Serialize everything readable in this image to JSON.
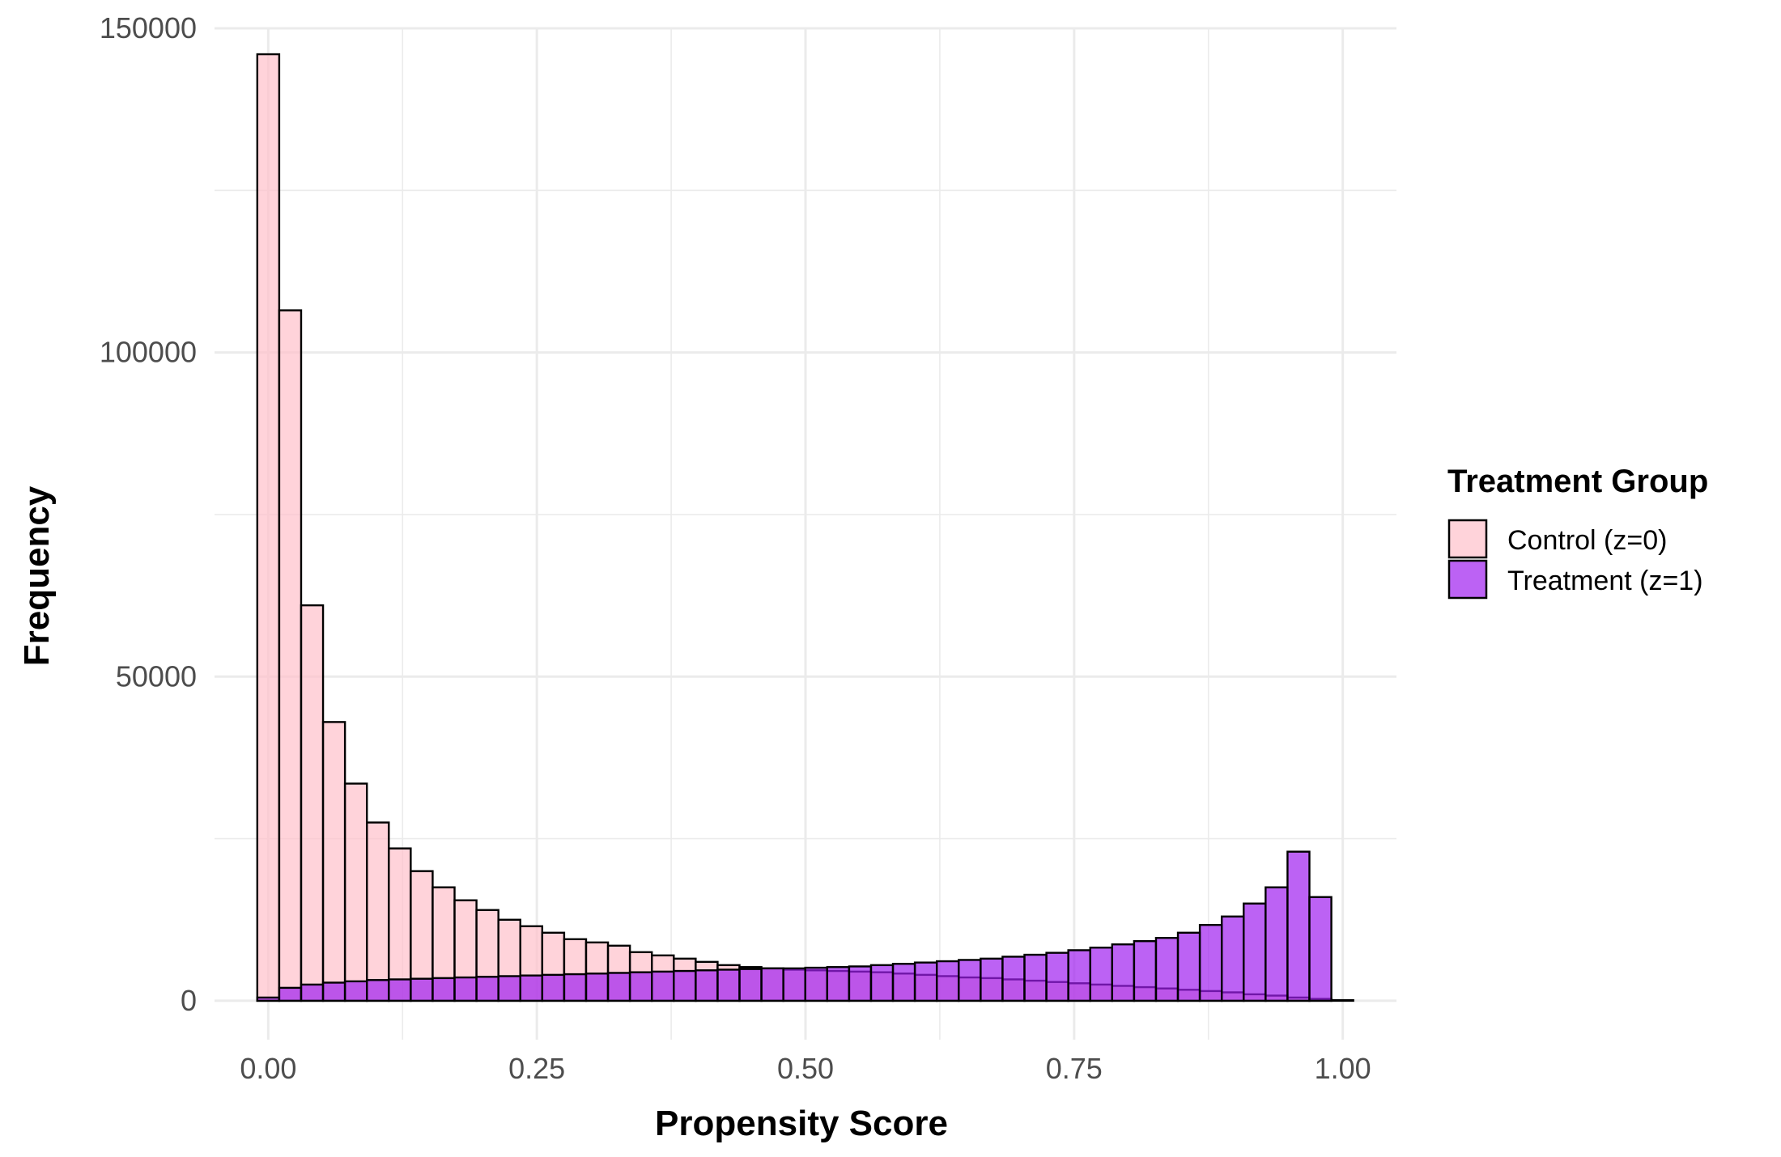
{
  "chart_data": {
    "type": "bar",
    "subtype": "overlapping-histogram",
    "xlabel": "Propensity Score",
    "ylabel": "Frequency",
    "xlim": [
      -0.05,
      1.05
    ],
    "ylim": [
      -6000,
      150000
    ],
    "x_ticks": [
      0.0,
      0.25,
      0.5,
      0.75,
      1.0
    ],
    "x_tick_labels": [
      "0.00",
      "0.25",
      "0.50",
      "0.75",
      "1.00"
    ],
    "y_ticks": [
      0,
      50000,
      100000,
      150000
    ],
    "y_tick_labels": [
      "0",
      "50000",
      "100000",
      "150000"
    ],
    "grid": true,
    "legend": {
      "title": "Treatment Group",
      "position": "right"
    },
    "bin_width": 0.0204,
    "bin_start": -0.0102,
    "series": [
      {
        "name": "Control (z=0)",
        "color": "#ffc0cb",
        "values": [
          146000,
          106500,
          61000,
          43000,
          33500,
          27500,
          23500,
          20000,
          17500,
          15500,
          14000,
          12500,
          11500,
          10500,
          9500,
          9000,
          8500,
          7500,
          7000,
          6500,
          6000,
          5500,
          5200,
          5000,
          4800,
          4700,
          4600,
          4500,
          4400,
          4200,
          4000,
          3800,
          3600,
          3500,
          3300,
          3100,
          2900,
          2700,
          2500,
          2300,
          2100,
          1900,
          1700,
          1500,
          1300,
          1000,
          800,
          500,
          300,
          100
        ]
      },
      {
        "name": "Treatment (z=1)",
        "color": "#a020f0",
        "values": [
          500,
          2000,
          2500,
          2800,
          3000,
          3200,
          3300,
          3400,
          3500,
          3600,
          3700,
          3800,
          3900,
          4000,
          4100,
          4200,
          4300,
          4400,
          4500,
          4600,
          4700,
          4800,
          4900,
          5000,
          5000,
          5100,
          5200,
          5300,
          5500,
          5700,
          5900,
          6100,
          6300,
          6500,
          6800,
          7100,
          7400,
          7800,
          8200,
          8700,
          9200,
          9700,
          10500,
          11700,
          13000,
          15000,
          17500,
          23000,
          16000,
          0
        ]
      }
    ]
  }
}
